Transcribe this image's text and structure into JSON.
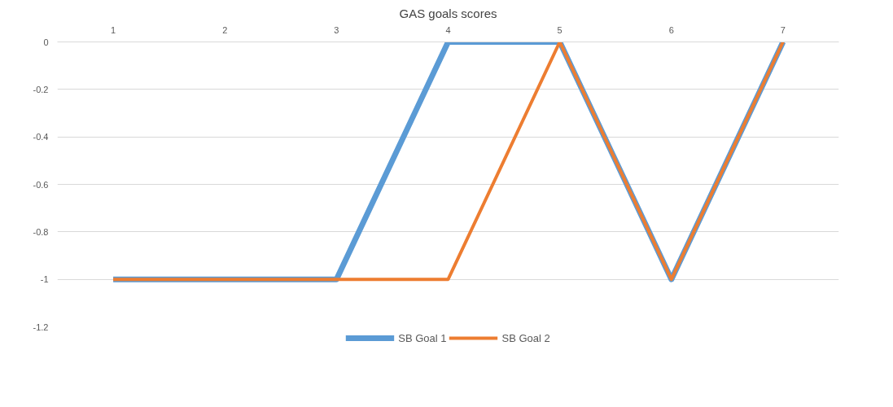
{
  "chart_data": {
    "type": "line",
    "title": "GAS goals scores",
    "categories": [
      "1",
      "2",
      "3",
      "4",
      "5",
      "6",
      "7"
    ],
    "series": [
      {
        "name": "SB Goal 1",
        "color": "#5b9bd5",
        "values": [
          -1,
          -1,
          -1,
          0,
          0,
          -1,
          0
        ]
      },
      {
        "name": "SB Goal 2",
        "color": "#ed7d31",
        "values": [
          -1,
          -1,
          -1,
          -1,
          0,
          -1,
          0
        ]
      }
    ],
    "ylim": [
      -1.2,
      0
    ],
    "yticks": [
      0,
      -0.2,
      -0.4,
      -0.6,
      -0.8,
      -1,
      -1.2
    ],
    "grid": "y",
    "legend": "bottom",
    "marker": "none",
    "line_style": "solid"
  }
}
